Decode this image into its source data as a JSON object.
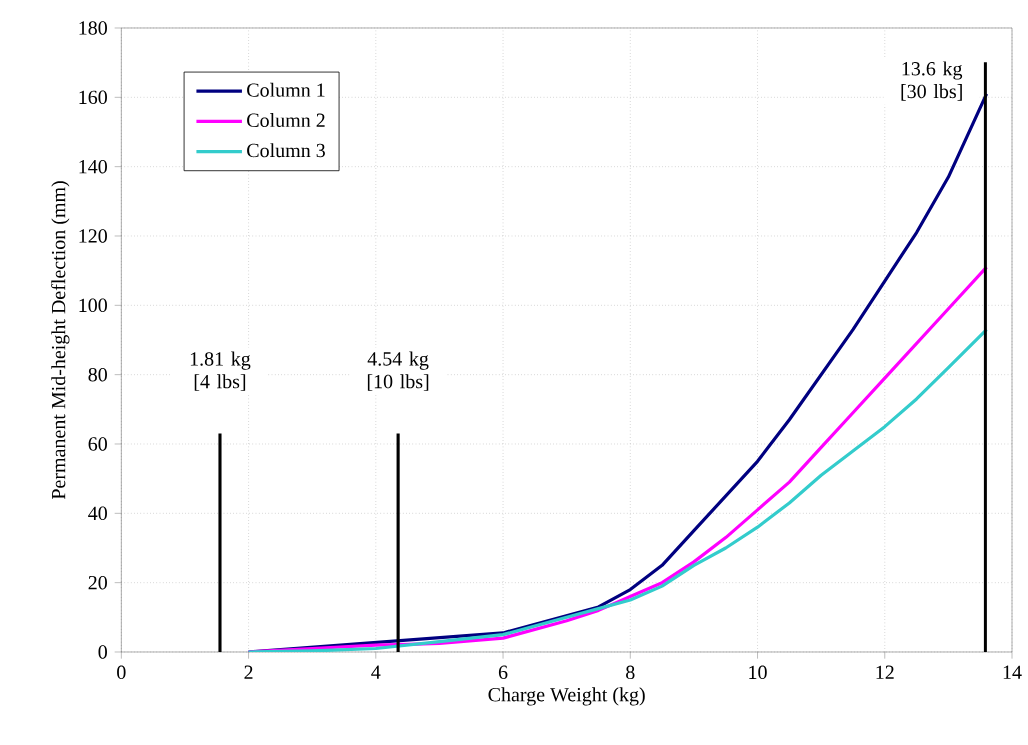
{
  "chart_data": {
    "type": "line",
    "xlabel": "Charge Weight (kg)",
    "ylabel": "Permanent Mid-height Deflection (mm)",
    "xlim": [
      0,
      14
    ],
    "xticks": [
      0,
      2,
      4,
      6,
      8,
      10,
      12,
      14
    ],
    "ylim": [
      0,
      180
    ],
    "yticks": [
      0,
      20,
      40,
      60,
      80,
      100,
      120,
      140,
      160,
      180
    ],
    "grid": true,
    "legend": "top left",
    "marker": "none",
    "line_style": "solid",
    "series": [
      {
        "name": "Column 1",
        "color": "#000080",
        "x": [
          2,
          3,
          4,
          5,
          6,
          7,
          7.5,
          8,
          8.5,
          9,
          9.5,
          10,
          10.5,
          11,
          11.5,
          12,
          12.5,
          13,
          13.6
        ],
        "values": [
          0,
          null,
          null,
          null,
          5.5,
          null,
          13,
          18,
          25,
          35,
          45,
          55,
          67,
          80,
          93,
          107,
          121,
          137,
          161
        ]
      },
      {
        "name": "Column 2",
        "color": "#ff00ff",
        "x": [
          2,
          3,
          4,
          4.5,
          5,
          6,
          7,
          7.5,
          8,
          8.5,
          9,
          9.5,
          10,
          10.5,
          11,
          11.5,
          12,
          12.5,
          13,
          13.6
        ],
        "values": [
          0,
          1,
          2,
          2.2,
          2.5,
          4,
          9,
          12,
          16,
          20,
          26,
          33,
          41,
          49,
          59,
          69,
          79,
          89,
          99,
          111
        ]
      },
      {
        "name": "Column 3",
        "color": "#33cccc",
        "x": [
          2,
          3,
          4,
          5,
          6,
          7,
          7.5,
          8,
          8.5,
          9,
          9.5,
          10,
          10.5,
          11,
          11.5,
          12,
          12.5,
          13,
          13.6
        ],
        "values": [
          0,
          0.3,
          1,
          3,
          5,
          10,
          12.5,
          15,
          19,
          25,
          30,
          36,
          43,
          51,
          58,
          65,
          73,
          82,
          93
        ]
      }
    ],
    "ref_lines": [
      {
        "axis": "x",
        "value": 1.55,
        "label": "1.81 kg [4 lbs]"
      },
      {
        "axis": "x",
        "value": 4.35,
        "label": "4.54 kg [10 lbs]"
      },
      {
        "axis": "x",
        "value": 13.58,
        "label": "13.6 kg [30 lbs]"
      }
    ]
  }
}
